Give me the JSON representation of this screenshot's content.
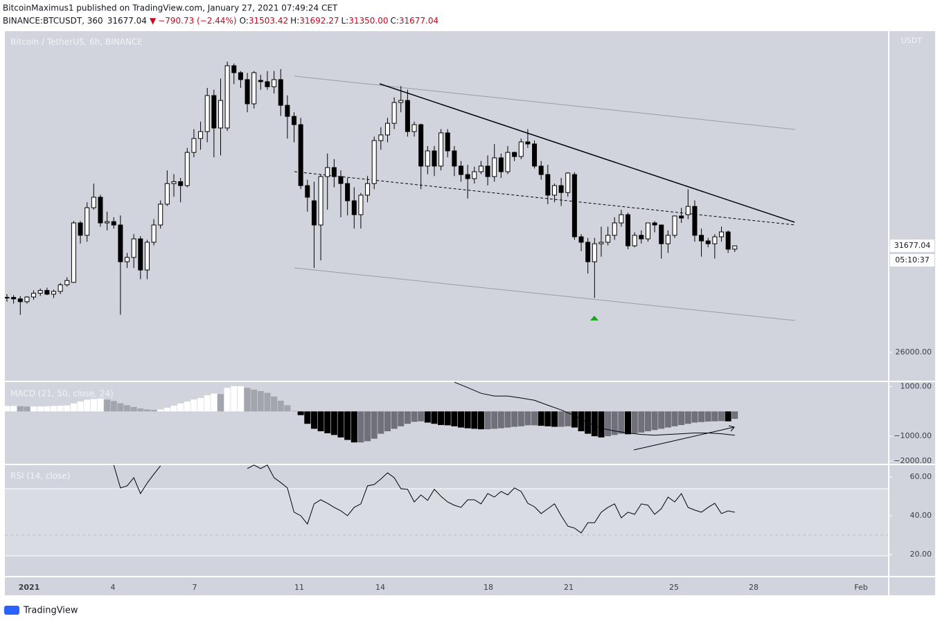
{
  "header": {
    "publisher_line": "BitcoinMaximus1 published on TradingView.com, January 27, 2021 07:49:24 CET",
    "symbol": "BINANCE:BTCUSDT, 360",
    "last": "31677.04",
    "change": "−790.73 (−2.44%)",
    "open_label": "O:",
    "open": "31503.42",
    "high_label": "H:",
    "high": "31692.27",
    "low_label": "L:",
    "low": "31350.00",
    "close_label": "C:"
  },
  "price_axis": {
    "currency": "USDT",
    "countdown": "05:10:37"
  },
  "time_axis": {
    "labels": [
      "2021",
      "4",
      "7",
      "11",
      "14",
      "18",
      "21",
      "25",
      "28",
      "Feb"
    ]
  },
  "footer": {
    "brand": "TradingView"
  },
  "chart_data": [
    {
      "type": "candlestick",
      "title": "Bitcoin / TetherUS, 6h, BINANCE",
      "up_color": "#ffffff",
      "down_color": "#000000",
      "wick_color": "#000000",
      "ylim": [
        24450,
        43050
      ],
      "yticks": [
        {
          "value": 26000,
          "label": "26000.00"
        }
      ],
      "open": [
        28920,
        28930,
        28850,
        28700,
        28950,
        29150,
        29300,
        29100,
        29250,
        29600,
        29730,
        32900,
        32240,
        33710,
        34270,
        32900,
        32970,
        32790,
        30830,
        31060,
        32050,
        30390,
        31870,
        32790,
        33900,
        35000,
        35100,
        34890,
        36660,
        37400,
        37770,
        39690,
        37960,
        37960,
        41280,
        40910,
        40540,
        39250,
        40500,
        40430,
        40160,
        40540,
        39170,
        38580,
        38140,
        34890,
        34080,
        32790,
        35370,
        35850,
        35370,
        35000,
        34080,
        33340,
        34380,
        35000,
        37290,
        37590,
        38210,
        39320,
        39430,
        37770,
        38140,
        35930,
        36740,
        35930,
        37700,
        36740,
        35930,
        35480,
        35260,
        35630,
        35930,
        35370,
        36370,
        35630,
        36660,
        36440,
        37220,
        37110,
        35930,
        35480,
        34380,
        34890,
        34520,
        35480,
        32160,
        31870,
        30830,
        31790,
        31870,
        32240,
        32900,
        33340,
        31680,
        32240,
        32050,
        32900,
        32790,
        31790,
        32240,
        33270,
        33340,
        33780,
        32240,
        31940,
        31790,
        32160,
        32420,
        31503.42
      ],
      "high": [
        29100,
        29050,
        29000,
        29000,
        29300,
        29400,
        29450,
        29350,
        29700,
        30000,
        33000,
        33000,
        34000,
        35000,
        34400,
        33500,
        33200,
        33300,
        31300,
        32300,
        32200,
        32000,
        33100,
        34100,
        35700,
        35500,
        35300,
        36900,
        37900,
        38300,
        40100,
        40000,
        40600,
        41500,
        41400,
        41000,
        40900,
        41000,
        40800,
        41000,
        41000,
        41100,
        39700,
        38800,
        38500,
        35200,
        35100,
        35500,
        36600,
        36300,
        35700,
        35300,
        34800,
        34500,
        35400,
        37500,
        38000,
        38500,
        39600,
        40200,
        40000,
        38300,
        38200,
        37000,
        37000,
        37900,
        37900,
        37000,
        36200,
        36000,
        35900,
        36200,
        36500,
        37100,
        36600,
        37000,
        36700,
        37400,
        37900,
        37300,
        36200,
        36000,
        35000,
        35300,
        35600,
        35600,
        32300,
        32100,
        32100,
        32700,
        32700,
        33200,
        33600,
        33450,
        32400,
        32500,
        32900,
        33000,
        32800,
        32500,
        33300,
        33700,
        34700,
        34100,
        32600,
        32100,
        32300,
        32700,
        32500,
        31692.27
      ],
      "low": [
        28700,
        28600,
        28000,
        28600,
        28800,
        29000,
        29050,
        28900,
        29100,
        29500,
        29700,
        31800,
        31900,
        33600,
        32700,
        32500,
        32600,
        28000,
        30500,
        30500,
        29900,
        29900,
        31700,
        32600,
        33800,
        34300,
        34000,
        34800,
        36400,
        36800,
        37200,
        36400,
        36500,
        37800,
        40300,
        40100,
        38800,
        39000,
        40000,
        40000,
        39800,
        38600,
        37400,
        37200,
        34700,
        33500,
        30500,
        30900,
        33600,
        34800,
        33200,
        33300,
        32600,
        32600,
        34000,
        34700,
        36800,
        37200,
        37900,
        38800,
        37500,
        37500,
        34700,
        35500,
        35400,
        35700,
        36400,
        35400,
        35100,
        34200,
        35000,
        35500,
        34900,
        35100,
        35300,
        35500,
        36200,
        36300,
        36900,
        35800,
        35200,
        33900,
        34000,
        33800,
        34300,
        32000,
        31400,
        30200,
        28900,
        31100,
        31700,
        32000,
        32700,
        31500,
        31600,
        31800,
        31900,
        32400,
        31000,
        31300,
        32100,
        32900,
        33100,
        31900,
        31100,
        31600,
        31000,
        31900,
        31300,
        31350
      ],
      "close": [
        28930,
        28850,
        28700,
        28950,
        29150,
        29300,
        29100,
        29250,
        29600,
        29830,
        32900,
        32240,
        33710,
        34270,
        32900,
        32970,
        32790,
        30830,
        31060,
        32050,
        30390,
        31870,
        32790,
        33900,
        35000,
        35100,
        34890,
        36660,
        37400,
        37770,
        39690,
        37960,
        39430,
        41280,
        40910,
        40540,
        39250,
        40910,
        40430,
        40160,
        40540,
        39170,
        38580,
        38140,
        34890,
        34270,
        32790,
        35370,
        35850,
        35370,
        35000,
        34080,
        33340,
        34380,
        35000,
        37290,
        37590,
        38210,
        39320,
        39430,
        37770,
        38140,
        35930,
        36740,
        35930,
        37700,
        36740,
        35930,
        35480,
        35260,
        35630,
        35930,
        35370,
        36370,
        35630,
        36660,
        36440,
        37220,
        37110,
        35930,
        35480,
        34380,
        34890,
        34520,
        35560,
        32160,
        31870,
        30830,
        31790,
        31870,
        32240,
        32900,
        33340,
        31680,
        32240,
        32050,
        32900,
        32790,
        31790,
        32240,
        33270,
        33160,
        33780,
        32240,
        31940,
        31790,
        32160,
        32420,
        31500,
        31677.04
      ]
    },
    {
      "type": "macd",
      "title": "MACD (21, 50, close, 24)",
      "ylim": [
        -2140,
        1210
      ],
      "yticks": [
        {
          "value": 1000,
          "label": "1000.00"
        },
        {
          "value": -1000,
          "label": "−1000.00"
        },
        {
          "value": -2000,
          "label": "−2000.00"
        }
      ],
      "histogram_colors": {
        "rising_positive": "#ffffff",
        "falling_positive": "#a3a5ad",
        "falling_negative": "#000000",
        "rising_negative": "#6f7079"
      },
      "histogram": [
        220,
        220,
        210,
        200,
        200,
        200,
        210,
        220,
        230,
        240,
        320,
        400,
        470,
        500,
        520,
        480,
        420,
        330,
        250,
        180,
        120,
        80,
        60,
        80,
        150,
        230,
        320,
        400,
        480,
        540,
        650,
        720,
        700,
        950,
        1020,
        1020,
        950,
        880,
        820,
        750,
        600,
        430,
        250,
        20,
        -150,
        -500,
        -700,
        -800,
        -880,
        -950,
        -1050,
        -1150,
        -1250,
        -1250,
        -1200,
        -1100,
        -900,
        -800,
        -700,
        -600,
        -500,
        -420,
        -400,
        -450,
        -500,
        -550,
        -560,
        -600,
        -650,
        -680,
        -700,
        -720,
        -720,
        -700,
        -680,
        -650,
        -620,
        -600,
        -560,
        -560,
        -580,
        -600,
        -620,
        -620,
        -600,
        -650,
        -800,
        -900,
        -1000,
        -1050,
        -1000,
        -950,
        -900,
        -920,
        -880,
        -850,
        -800,
        -750,
        -700,
        -650,
        -600,
        -550,
        -500,
        -450,
        -430,
        -410,
        -400,
        -390,
        -400,
        -300
      ],
      "line": {
        "color": "#000000",
        "x": [
          67,
          69,
          71,
          73,
          75,
          77,
          79,
          81,
          83,
          85,
          87,
          89,
          91,
          93,
          95,
          97,
          99,
          101,
          103,
          105,
          107,
          109
        ],
        "values": [
          1180,
          960,
          730,
          620,
          620,
          540,
          450,
          250,
          60,
          -170,
          -450,
          -680,
          -790,
          -870,
          -930,
          -960,
          -930,
          -900,
          -870,
          -870,
          -900,
          -960
        ]
      }
    },
    {
      "type": "line",
      "title": "RSI (14, close)",
      "color": "#000000",
      "ylim": [
        8.6,
        66.4
      ],
      "yticks": [
        {
          "value": 60,
          "label": "60.00"
        },
        {
          "value": 40,
          "label": "40.00"
        },
        {
          "value": 20,
          "label": "20.00"
        }
      ],
      "values": [
        null,
        null,
        null,
        null,
        null,
        null,
        null,
        null,
        null,
        null,
        null,
        null,
        null,
        null,
        null,
        null,
        66.1,
        54.3,
        55.4,
        59.6,
        51.4,
        56.8,
        61.4,
        65.7,
        null,
        null,
        null,
        null,
        null,
        null,
        null,
        null,
        null,
        null,
        null,
        null,
        64.3,
        66.1,
        64.3,
        66.1,
        59.6,
        57.1,
        54.3,
        41.8,
        40,
        35.7,
        46.1,
        48.2,
        46.4,
        44.3,
        42.5,
        40,
        44.3,
        46.1,
        55.4,
        56.1,
        58.9,
        62.1,
        59.6,
        53.9,
        53.6,
        47.1,
        50.7,
        47.9,
        53.6,
        50,
        47.1,
        45.4,
        44.3,
        48.2,
        48.2,
        46.1,
        51.4,
        49.6,
        52.5,
        50.7,
        54.3,
        52.5,
        46.4,
        44.6,
        41.1,
        43.6,
        46.1,
        40,
        34.6,
        33.6,
        31.1,
        36.4,
        36.4,
        41.8,
        44.3,
        46.1,
        38.9,
        41.8,
        40.7,
        46.1,
        45.4,
        40.7,
        43.6,
        49.6,
        47.1,
        51.4,
        44.3,
        42.9,
        41.8,
        44.3,
        46.4,
        41.1,
        42.5,
        41.8
      ]
    }
  ]
}
